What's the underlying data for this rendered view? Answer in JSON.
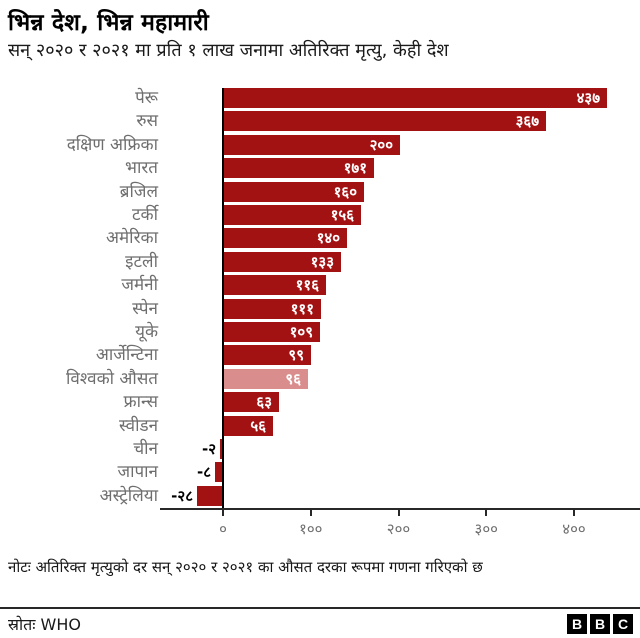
{
  "header": {
    "title": "भिन्न देश, भिन्न महामारी",
    "subtitle": "सन् २०२० र २०२१ मा प्रति १ लाख जनामा अतिरिक्त मृत्यु, केही देश"
  },
  "chart_data": {
    "type": "bar",
    "orientation": "horizontal",
    "categories": [
      "पेरू",
      "रुस",
      "दक्षिण अफ्रिका",
      "भारत",
      "ब्रजिल",
      "टर्की",
      "अमेरिका",
      "इटली",
      "जर्मनी",
      "स्पेन",
      "यूके",
      "आर्जेन्टिना",
      "विश्वको औसत",
      "फ्रान्स",
      "स्वीडन",
      "चीन",
      "जापान",
      "अस्ट्रेलिया"
    ],
    "values": [
      437,
      367,
      200,
      171,
      160,
      156,
      140,
      133,
      116,
      111,
      109,
      99,
      96,
      63,
      56,
      -2,
      -8,
      -28
    ],
    "value_labels": [
      "४३७",
      "३६७",
      "२००",
      "१७१",
      "१६०",
      "१५६",
      "१४०",
      "१३३",
      "११६",
      "१११",
      "१०९",
      "९९",
      "९६",
      "६३",
      "५६",
      "-२",
      "-८",
      "-२८"
    ],
    "highlight_index": 12,
    "x_ticks": [
      0,
      100,
      200,
      300,
      400
    ],
    "x_tick_labels": [
      "०",
      "१००",
      "२००",
      "३००",
      "४००"
    ],
    "xlim": [
      -40,
      474
    ],
    "grid": false,
    "legend": null,
    "colors": {
      "bar": "#a31212",
      "highlight": "#d98d8d",
      "axis": "#282828",
      "zero_line": "#000000",
      "tick_label": "#6e6e6e",
      "category_label": "#6e6e6e",
      "value_label_positive": "#ffffff",
      "value_label_negative": "#000000"
    }
  },
  "note": "नोटः अतिरिक्त मृत्युको दर सन् २०२० र २०२१ का औसत दरका रूपमा गणना गरिएको छ",
  "footer": {
    "source": "स्रोतः WHO",
    "logo_letters": [
      "B",
      "B",
      "C"
    ]
  }
}
